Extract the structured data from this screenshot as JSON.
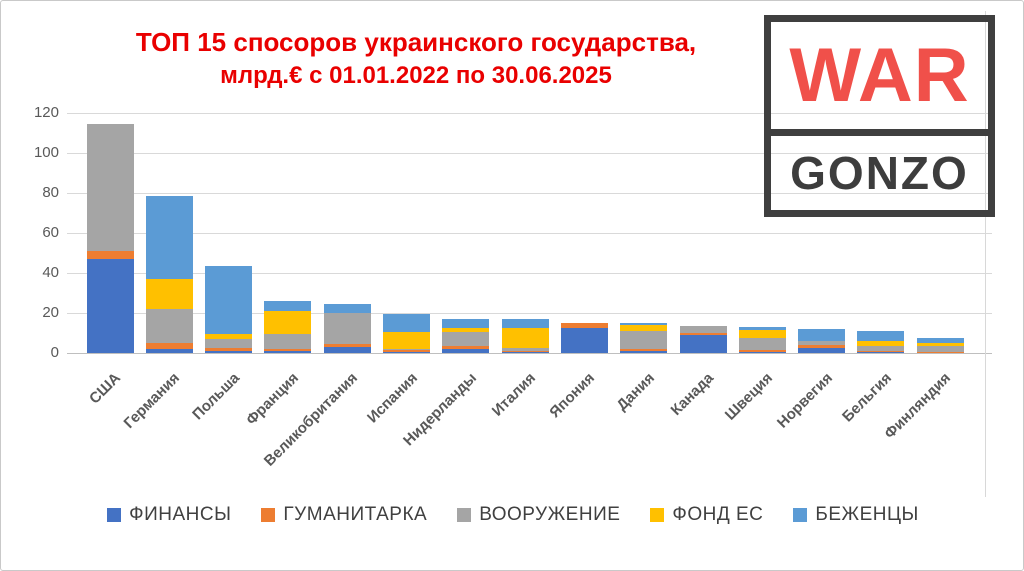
{
  "page": {
    "title_line1": "ТОП 15 спосоров украинского государства,",
    "title_line2": "млрд.€ с 01.01.2022 по 30.06.2025",
    "title_color": "#e90000"
  },
  "logo": {
    "word_top": "WAR",
    "word_bottom": "GONZO",
    "word_top_color": "#f0504a",
    "word_bottom_color": "#3d3d3d",
    "frame_color": "#3f3f3f"
  },
  "chart_data": {
    "type": "bar",
    "stacked": true,
    "title": "ТОП 15 спосоров украинского государства, млрд.€ с 01.01.2022 по 30.06.2025",
    "categories": [
      "США",
      "Германия",
      "Польша",
      "Франция",
      "Великобритания",
      "Испания",
      "Нидерланды",
      "Италия",
      "Япония",
      "Дания",
      "Канада",
      "Швеция",
      "Норвегия",
      "Бельгия",
      "Финляндия"
    ],
    "series": [
      {
        "name": "ФИНАНСЫ",
        "color": "#4472c4",
        "values": [
          47.0,
          2.0,
          1.0,
          1.0,
          3.2,
          0.5,
          2.0,
          0.5,
          12.7,
          0.8,
          8.8,
          0.5,
          2.5,
          0.5,
          0.3
        ]
      },
      {
        "name": "ГУМАНИТАРКА",
        "color": "#ed7d31",
        "values": [
          4.0,
          3.0,
          1.5,
          1.0,
          1.3,
          1.0,
          1.5,
          0.5,
          2.5,
          1.2,
          1.0,
          1.0,
          1.5,
          0.5,
          0.4
        ]
      },
      {
        "name": "ВООРУЖЕНИЕ",
        "color": "#a5a5a5",
        "values": [
          63.5,
          17.0,
          4.5,
          7.5,
          15.5,
          0.5,
          7.0,
          1.5,
          0,
          9.0,
          3.7,
          6.0,
          2.0,
          2.5,
          2.6
        ]
      },
      {
        "name": "ФОНД ЕС",
        "color": "#ffc000",
        "values": [
          0,
          15.0,
          2.5,
          11.5,
          0,
          8.5,
          2.0,
          10.0,
          0,
          2.8,
          0,
          3.8,
          0,
          2.5,
          1.7
        ]
      },
      {
        "name": "БЕЖЕНЦЫ",
        "color": "#5b9bd5",
        "values": [
          0,
          41.5,
          34.0,
          5.0,
          4.5,
          9.0,
          4.5,
          4.5,
          0,
          1.4,
          0,
          1.7,
          5.8,
          5.0,
          2.5
        ]
      }
    ],
    "totals": [
      114.5,
      78.5,
      43.5,
      26.0,
      24.5,
      19.5,
      17.0,
      17.0,
      15.2,
      15.2,
      13.5,
      13.0,
      11.8,
      11.0,
      7.5
    ],
    "ylim": [
      0,
      120
    ],
    "yticks": [
      0,
      20,
      40,
      60,
      80,
      100,
      120
    ],
    "grid": true,
    "legend_position": "bottom"
  }
}
